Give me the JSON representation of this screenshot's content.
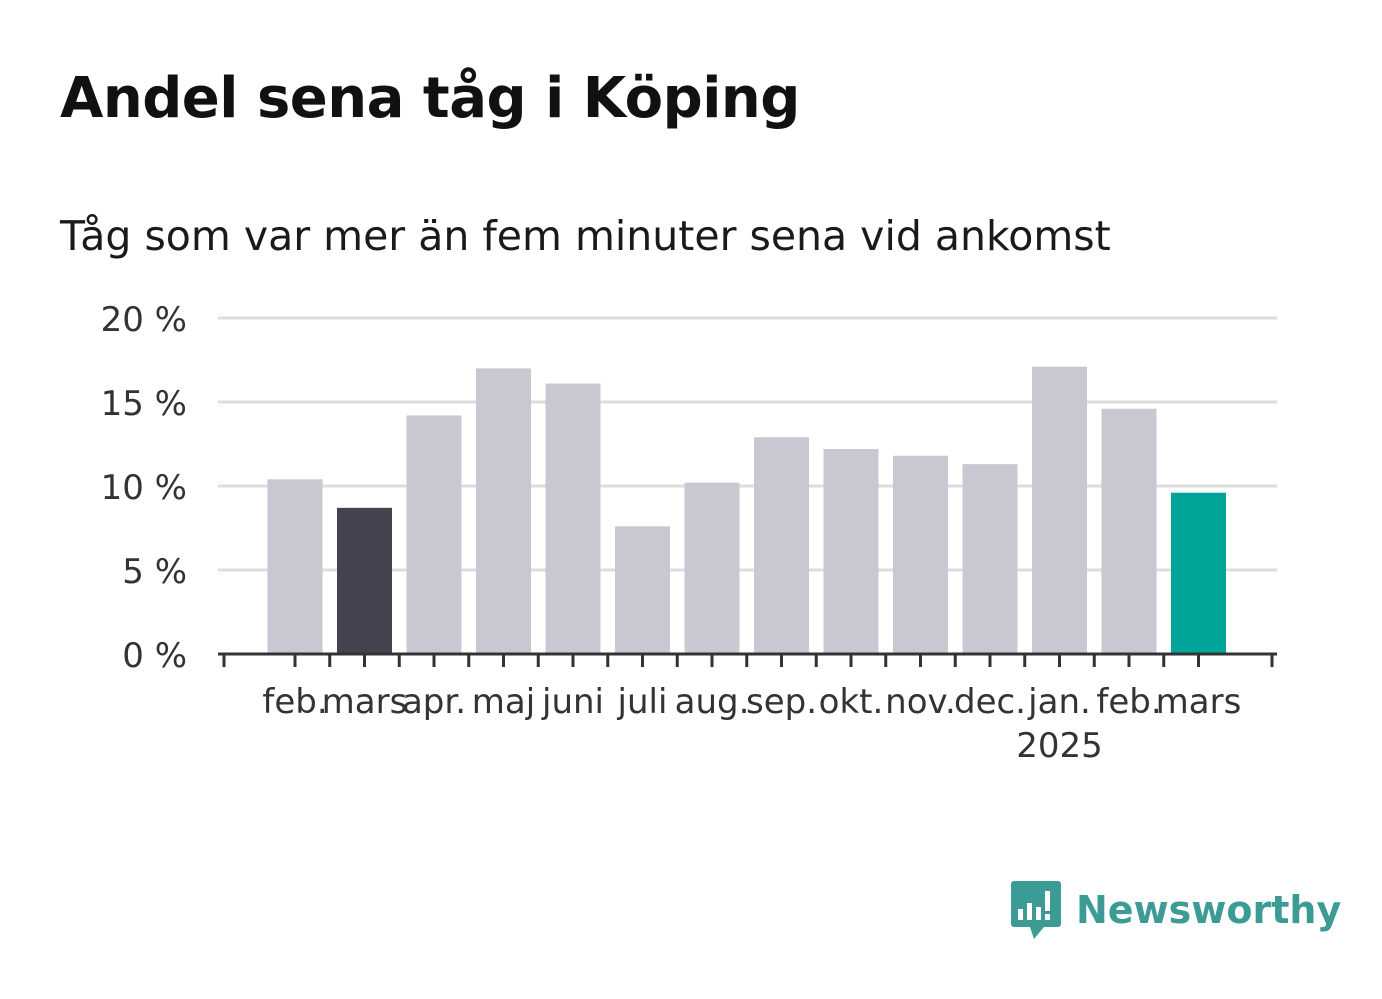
{
  "title": "Andel sena tåg i Köping",
  "subtitle": "Tåg som var mer än fem minuter sena vid ankomst",
  "brand": {
    "name": "Newsworthy",
    "icon": "newsworthy-logo-icon",
    "color": "#3d9b96"
  },
  "colors": {
    "default_bar": "#c8c7d2",
    "previous_year_bar": "#44424e",
    "current_bar": "#00a499",
    "grid": "#dddddd",
    "axis": "#333333",
    "text": "#333333"
  },
  "chart_data": {
    "type": "bar",
    "categories": [
      "feb.",
      "mars",
      "apr.",
      "maj",
      "juni",
      "juli",
      "aug.",
      "sep.",
      "okt.",
      "nov.",
      "dec.",
      "jan.",
      "feb.",
      "mars"
    ],
    "year_labels": [
      "",
      "",
      "",
      "",
      "",
      "",
      "",
      "",
      "",
      "",
      "",
      "2025",
      "",
      ""
    ],
    "values": [
      10.4,
      8.7,
      14.2,
      17.0,
      16.1,
      7.6,
      10.2,
      12.9,
      12.2,
      11.8,
      11.3,
      17.1,
      14.6,
      9.6
    ],
    "highlight": [
      "default",
      "previous_year",
      "default",
      "default",
      "default",
      "default",
      "default",
      "default",
      "default",
      "default",
      "default",
      "default",
      "default",
      "current"
    ],
    "ylim": [
      0,
      20
    ],
    "yticks": [
      0,
      5,
      10,
      15,
      20
    ],
    "ytick_labels": [
      "0 %",
      "5 %",
      "10 %",
      "15 %",
      "20 %"
    ],
    "xlabel": "",
    "ylabel": "",
    "grid": true,
    "legend": "none"
  }
}
